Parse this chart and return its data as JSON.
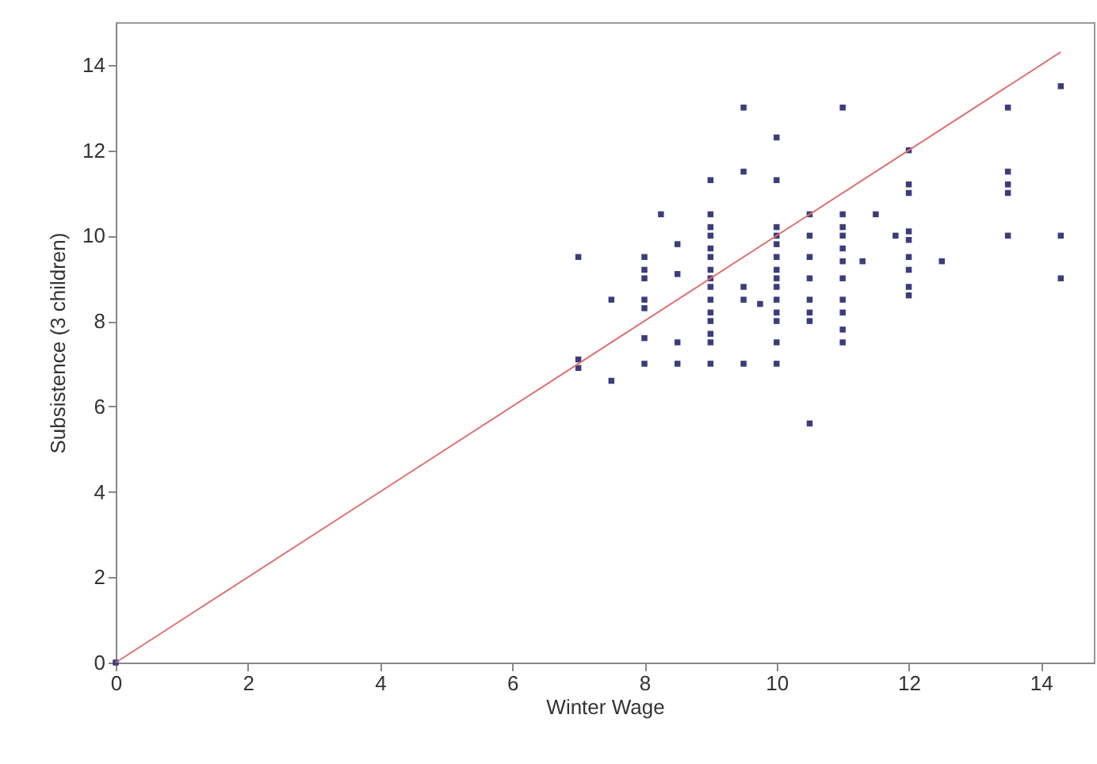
{
  "chart_data": {
    "type": "scatter",
    "xlabel": "Winter Wage",
    "ylabel": "Subsistence (3 children)",
    "xlim": [
      0,
      14.8
    ],
    "ylim": [
      0,
      15
    ],
    "xticks": [
      0,
      2,
      4,
      6,
      8,
      10,
      12,
      14
    ],
    "yticks": [
      0,
      2,
      4,
      6,
      8,
      10,
      12,
      14
    ],
    "grid": false,
    "marker": "square",
    "series": [
      {
        "color": "#3c3c7c",
        "x": [
          0,
          7,
          7,
          7,
          7.5,
          7.5,
          8,
          8,
          8,
          8,
          8,
          8,
          8,
          8.25,
          8.5,
          8.5,
          8.5,
          8.5,
          9,
          9,
          9,
          9,
          9,
          9,
          9,
          9,
          9,
          9,
          9,
          9,
          9,
          9,
          9,
          9.5,
          9.5,
          9.5,
          9.5,
          9.5,
          9.75,
          10,
          10,
          10,
          10,
          10,
          10,
          10,
          10,
          10,
          10,
          10,
          10,
          10,
          10,
          10.5,
          10.5,
          10.5,
          10.5,
          10.5,
          10.5,
          10.5,
          10.5,
          11,
          11,
          11,
          11,
          11,
          11,
          11,
          11,
          11,
          11,
          11,
          11.3,
          11.5,
          11.8,
          12,
          12,
          12,
          12,
          12,
          12,
          12,
          12,
          12,
          12.5,
          13.5,
          13.5,
          13.5,
          13.5,
          13.5,
          14.3,
          14.3,
          14.3
        ],
        "values": [
          0,
          9.5,
          7.1,
          6.9,
          8.5,
          6.6,
          9.5,
          9.2,
          9,
          8.5,
          8.3,
          7.6,
          7,
          10.5,
          9.8,
          9.1,
          7.5,
          7,
          11.3,
          10.5,
          10.2,
          10,
          9.7,
          9.5,
          9.2,
          9,
          8.8,
          8.5,
          8.2,
          8,
          7.7,
          7.5,
          7,
          13,
          11.5,
          8.8,
          8.5,
          7,
          8.4,
          12.3,
          11.3,
          10.2,
          10,
          9.8,
          9.5,
          9.2,
          9,
          8.8,
          8.5,
          8.2,
          8,
          7.5,
          7,
          10.5,
          10,
          9.5,
          9,
          8.5,
          8.2,
          8,
          5.6,
          13,
          10.5,
          10.2,
          10,
          9.7,
          9.4,
          9,
          8.5,
          8.2,
          7.8,
          7.5,
          9.4,
          10.5,
          10,
          12,
          11.2,
          11,
          10.1,
          9.9,
          9.5,
          9.2,
          8.8,
          8.6,
          9.4,
          13,
          11.5,
          11.2,
          11,
          10,
          13.5,
          10,
          9
        ]
      },
      {
        "type": "line",
        "marker": "none",
        "color": "#e07070",
        "x": [
          0,
          14.3
        ],
        "values": [
          0,
          14.3
        ]
      }
    ]
  }
}
